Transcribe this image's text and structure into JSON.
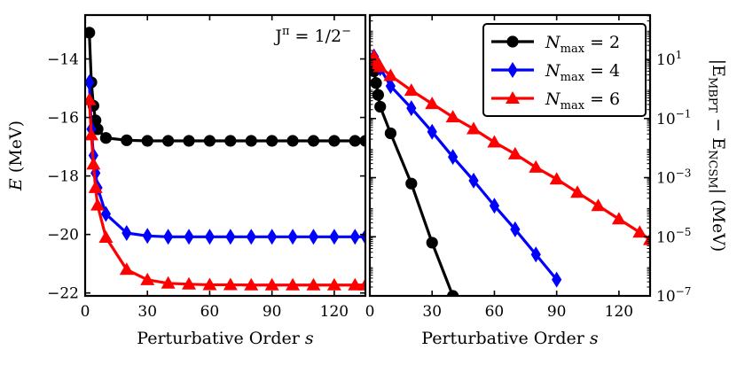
{
  "chart_data": [
    {
      "type": "line",
      "panel": "left",
      "annotation": "J^π = 1/2^−",
      "xlabel": "Perturbative Order s",
      "ylabel": "E (MeV)",
      "xlim": [
        0,
        135
      ],
      "ylim": [
        -22.1,
        -12.5
      ],
      "xticks": [
        0,
        30,
        60,
        90,
        120
      ],
      "xtick_labels": [
        "0",
        "30",
        "60",
        "90",
        "120"
      ],
      "yticks": [
        -14,
        -16,
        -18,
        -20,
        -22
      ],
      "ytick_labels": [
        "−14",
        "−16",
        "−18",
        "−20",
        "−22"
      ],
      "series": [
        {
          "name": "N_max = 2",
          "color": "#000000",
          "marker": "circle",
          "x": [
            2,
            3,
            4,
            5,
            6,
            10,
            20,
            30,
            40,
            50,
            60,
            70,
            80,
            90,
            100,
            110,
            120,
            130,
            135
          ],
          "y": [
            -13.1,
            -14.8,
            -15.6,
            -16.1,
            -16.4,
            -16.7,
            -16.78,
            -16.8,
            -16.8,
            -16.8,
            -16.8,
            -16.8,
            -16.8,
            -16.8,
            -16.8,
            -16.8,
            -16.8,
            -16.8,
            -16.8
          ]
        },
        {
          "name": "N_max = 4",
          "color": "#0000ff",
          "marker": "diamond",
          "x": [
            2,
            3,
            4,
            5,
            6,
            10,
            20,
            30,
            40,
            50,
            60,
            70,
            80,
            90,
            100,
            110,
            120,
            130,
            135
          ],
          "y": [
            -14.8,
            -16.4,
            -17.3,
            -17.9,
            -18.4,
            -19.3,
            -19.95,
            -20.05,
            -20.08,
            -20.08,
            -20.08,
            -20.08,
            -20.08,
            -20.08,
            -20.08,
            -20.08,
            -20.08,
            -20.08,
            -20.08
          ]
        },
        {
          "name": "N_max = 6",
          "color": "#ff0000",
          "marker": "triangle",
          "x": [
            2,
            3,
            4,
            5,
            6,
            10,
            20,
            30,
            40,
            50,
            60,
            70,
            80,
            90,
            100,
            110,
            120,
            130,
            135
          ],
          "y": [
            -15.4,
            -16.6,
            -17.6,
            -18.4,
            -19.0,
            -20.1,
            -21.2,
            -21.55,
            -21.67,
            -21.7,
            -21.72,
            -21.72,
            -21.73,
            -21.73,
            -21.73,
            -21.73,
            -21.73,
            -21.73,
            -21.73
          ]
        }
      ]
    },
    {
      "type": "line",
      "panel": "right",
      "yscale": "log",
      "xlabel": "Perturbative Order s",
      "ylabel": "|E_MBPT − E_NCSM| (MeV)",
      "xlim": [
        0,
        135
      ],
      "ylim_log10": [
        -7,
        2.5
      ],
      "xticks": [
        0,
        30,
        60,
        90,
        120
      ],
      "xtick_labels": [
        "0",
        "30",
        "60",
        "90",
        "120"
      ],
      "yticks_log10": [
        1,
        -1,
        -3,
        -5,
        -7
      ],
      "ytick_labels": [
        "10^1",
        "10^-1",
        "10^-3",
        "10^-5",
        "10^-7"
      ],
      "legend_position": "top-right",
      "series": [
        {
          "name": "N_max = 2",
          "legend_label": "N_max = 2",
          "color": "#000000",
          "marker": "circle",
          "x": [
            2,
            3,
            4,
            5,
            10,
            20,
            30,
            40
          ],
          "log10_y": [
            0.6,
            0.2,
            -0.2,
            -0.6,
            -1.5,
            -3.2,
            -5.2,
            -7.0
          ]
        },
        {
          "name": "N_max = 4",
          "legend_label": "N_max = 4",
          "color": "#0000ff",
          "marker": "diamond",
          "x": [
            2,
            3,
            4,
            5,
            10,
            20,
            30,
            40,
            50,
            60,
            70,
            80,
            90
          ],
          "log10_y": [
            1.1,
            0.95,
            0.8,
            0.7,
            0.1,
            -0.65,
            -1.45,
            -2.3,
            -3.1,
            -3.95,
            -4.75,
            -5.6,
            -6.45
          ]
        },
        {
          "name": "N_max = 6",
          "legend_label": "N_max = 6",
          "color": "#ff0000",
          "marker": "triangle",
          "x": [
            2,
            3,
            4,
            5,
            10,
            20,
            30,
            40,
            50,
            60,
            70,
            80,
            90,
            100,
            110,
            120,
            130,
            135
          ],
          "log10_y": [
            1.1,
            0.95,
            0.85,
            0.75,
            0.45,
            -0.05,
            -0.5,
            -0.95,
            -1.35,
            -1.8,
            -2.2,
            -2.65,
            -3.05,
            -3.5,
            -3.95,
            -4.4,
            -4.85,
            -5.1
          ]
        }
      ]
    }
  ]
}
